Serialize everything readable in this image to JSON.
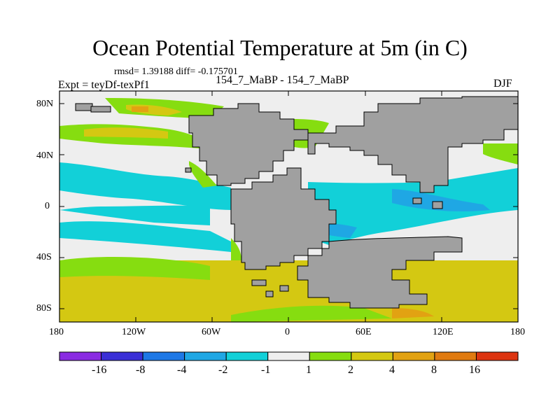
{
  "title": "Ocean Potential Temperature at 5m (in C)",
  "stats": "rmsd= 1.39188 diff= -0.175701",
  "left_label": "Expt = teyDf-texPf1",
  "center_label": "154_7_MaBP - 154_7_MaBP",
  "season": "DJF",
  "lat_ticks": [
    "80N",
    "40N",
    "0",
    "40S",
    "80S"
  ],
  "lon_ticks": [
    "180",
    "120W",
    "60W",
    "0",
    "60E",
    "120E",
    "180"
  ],
  "colorbar": {
    "labels": [
      "-16",
      "-8",
      "-4",
      "-2",
      "-1",
      "1",
      "2",
      "4",
      "8",
      "16"
    ],
    "colors": [
      "#8a2be2",
      "#3a2fd6",
      "#1e78e6",
      "#1fa7e4",
      "#12d0d8",
      "#eeeeee",
      "#86dd10",
      "#d4c812",
      "#e2a212",
      "#e07a10",
      "#dc3410"
    ]
  },
  "colors": {
    "land": "#a0a0a0",
    "neutral": "#eeeeee"
  }
}
